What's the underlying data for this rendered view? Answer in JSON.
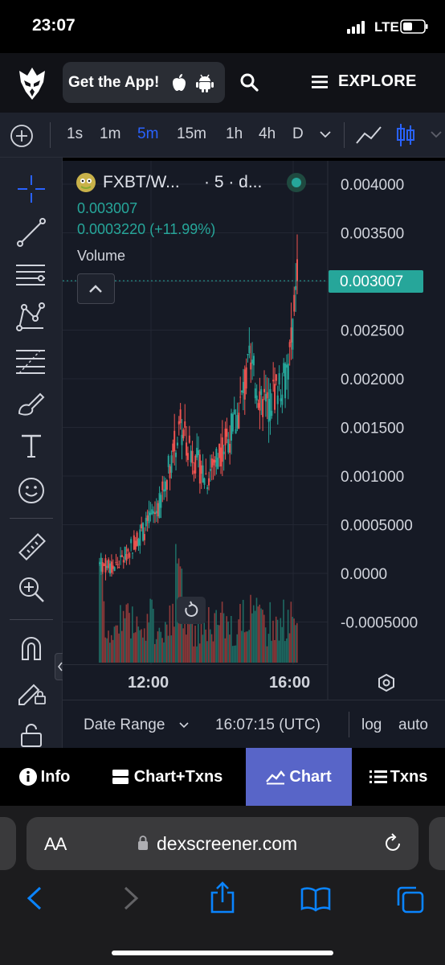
{
  "status_bar": {
    "time": "23:07",
    "network": "LTE"
  },
  "header": {
    "get_app_label": "Get the App!",
    "explore_label": "EXPLORE"
  },
  "toolbar": {
    "timeframes": [
      "1s",
      "1m",
      "5m",
      "15m",
      "1h",
      "4h",
      "D"
    ],
    "active_timeframe": "5m"
  },
  "chart_header": {
    "pair": "FXBT/W...",
    "interval": "· 5 · d...",
    "price": "0.003007",
    "change": "0.0003220 (+11.99%)",
    "volume_label": "Volume"
  },
  "chart_data": {
    "type": "candlestick",
    "price_axis_labels": [
      "0.004000",
      "0.003500",
      "0.003000",
      "0.002500",
      "0.002000",
      "0.001500",
      "0.001000",
      "0.0005000",
      "0.0000",
      "-0.0005000"
    ],
    "current_price_label": "0.003007",
    "x_tick_labels": [
      "12:00",
      "16:00"
    ],
    "ylim": [
      -0.0005,
      0.004
    ],
    "colors": {
      "up": "#26a69a",
      "down": "#ef5350"
    }
  },
  "date_bar": {
    "date_range_label": "Date Range",
    "time_label": "16:07:15 (UTC)",
    "log_label": "log",
    "auto_label": "auto"
  },
  "bottom_tabs": [
    {
      "label": "Info",
      "icon": "info-icon"
    },
    {
      "label": "Chart+Txns",
      "icon": "split-icon"
    },
    {
      "label": "Chart",
      "icon": "mountain-chart-icon",
      "active": true
    },
    {
      "label": "Txns",
      "icon": "list-icon"
    }
  ],
  "browser": {
    "text_size_label": "AA",
    "url": "dexscreener.com"
  }
}
